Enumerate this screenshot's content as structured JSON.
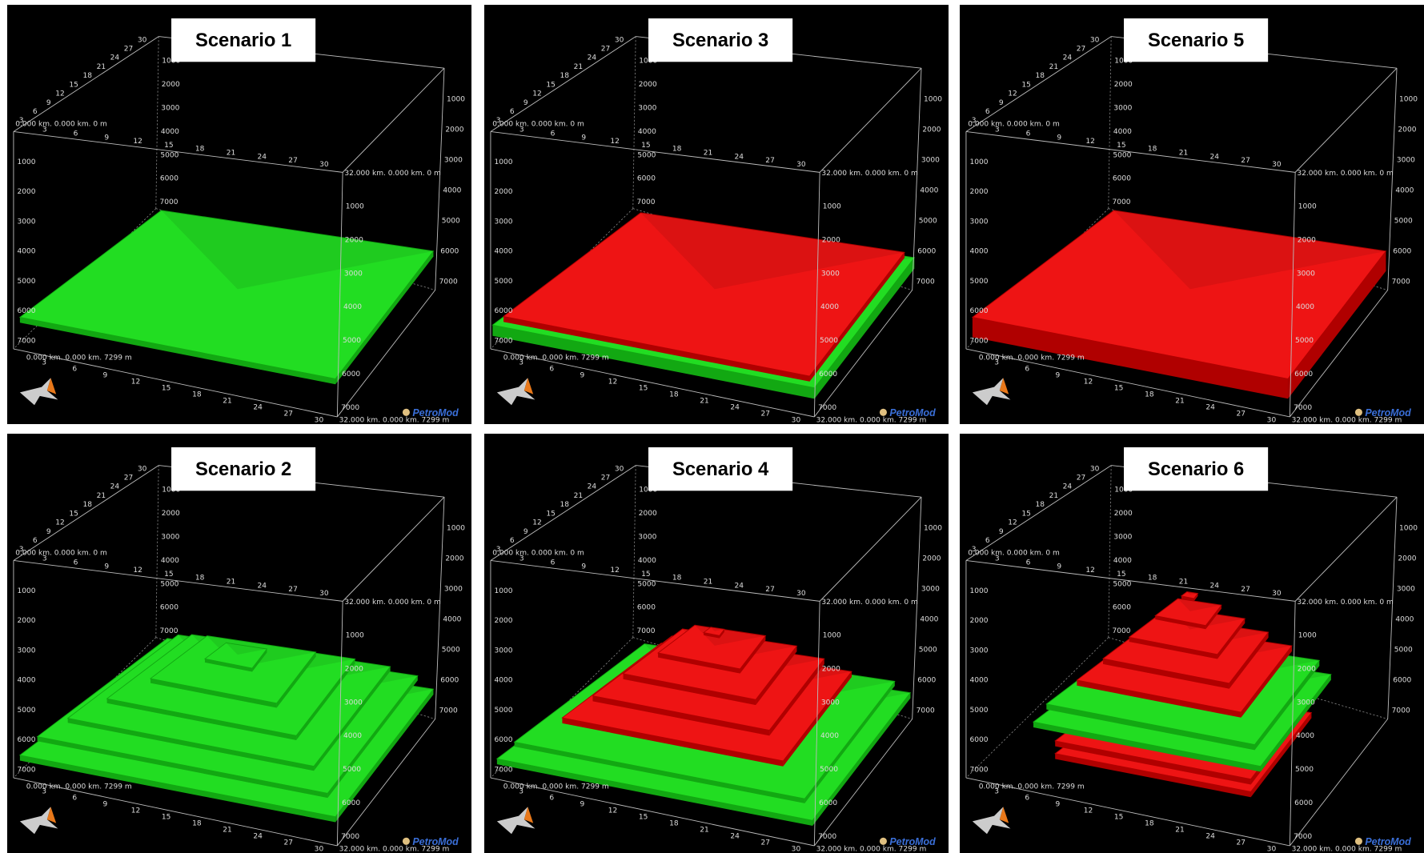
{
  "panels": [
    {
      "title": "Scenario 1"
    },
    {
      "title": "Scenario 3"
    },
    {
      "title": "Scenario 5"
    },
    {
      "title": "Scenario 2"
    },
    {
      "title": "Scenario 4"
    },
    {
      "title": "Scenario 6"
    }
  ],
  "axes": {
    "x_ticks": [
      3,
      6,
      9,
      12,
      15,
      18,
      21,
      24,
      27,
      30
    ],
    "depth_ticks": [
      1000,
      2000,
      3000,
      4000,
      5000,
      6000,
      7000
    ]
  },
  "corner_labels": [
    "0.000 km. 0.000 km. 0 m",
    "32.000 km. 0.000 km. 0 m",
    "0.000 km. 0.000 km. 7299 m",
    "32.000 km. 0.000 km. 7299 m"
  ],
  "logo": "PetroMod"
}
